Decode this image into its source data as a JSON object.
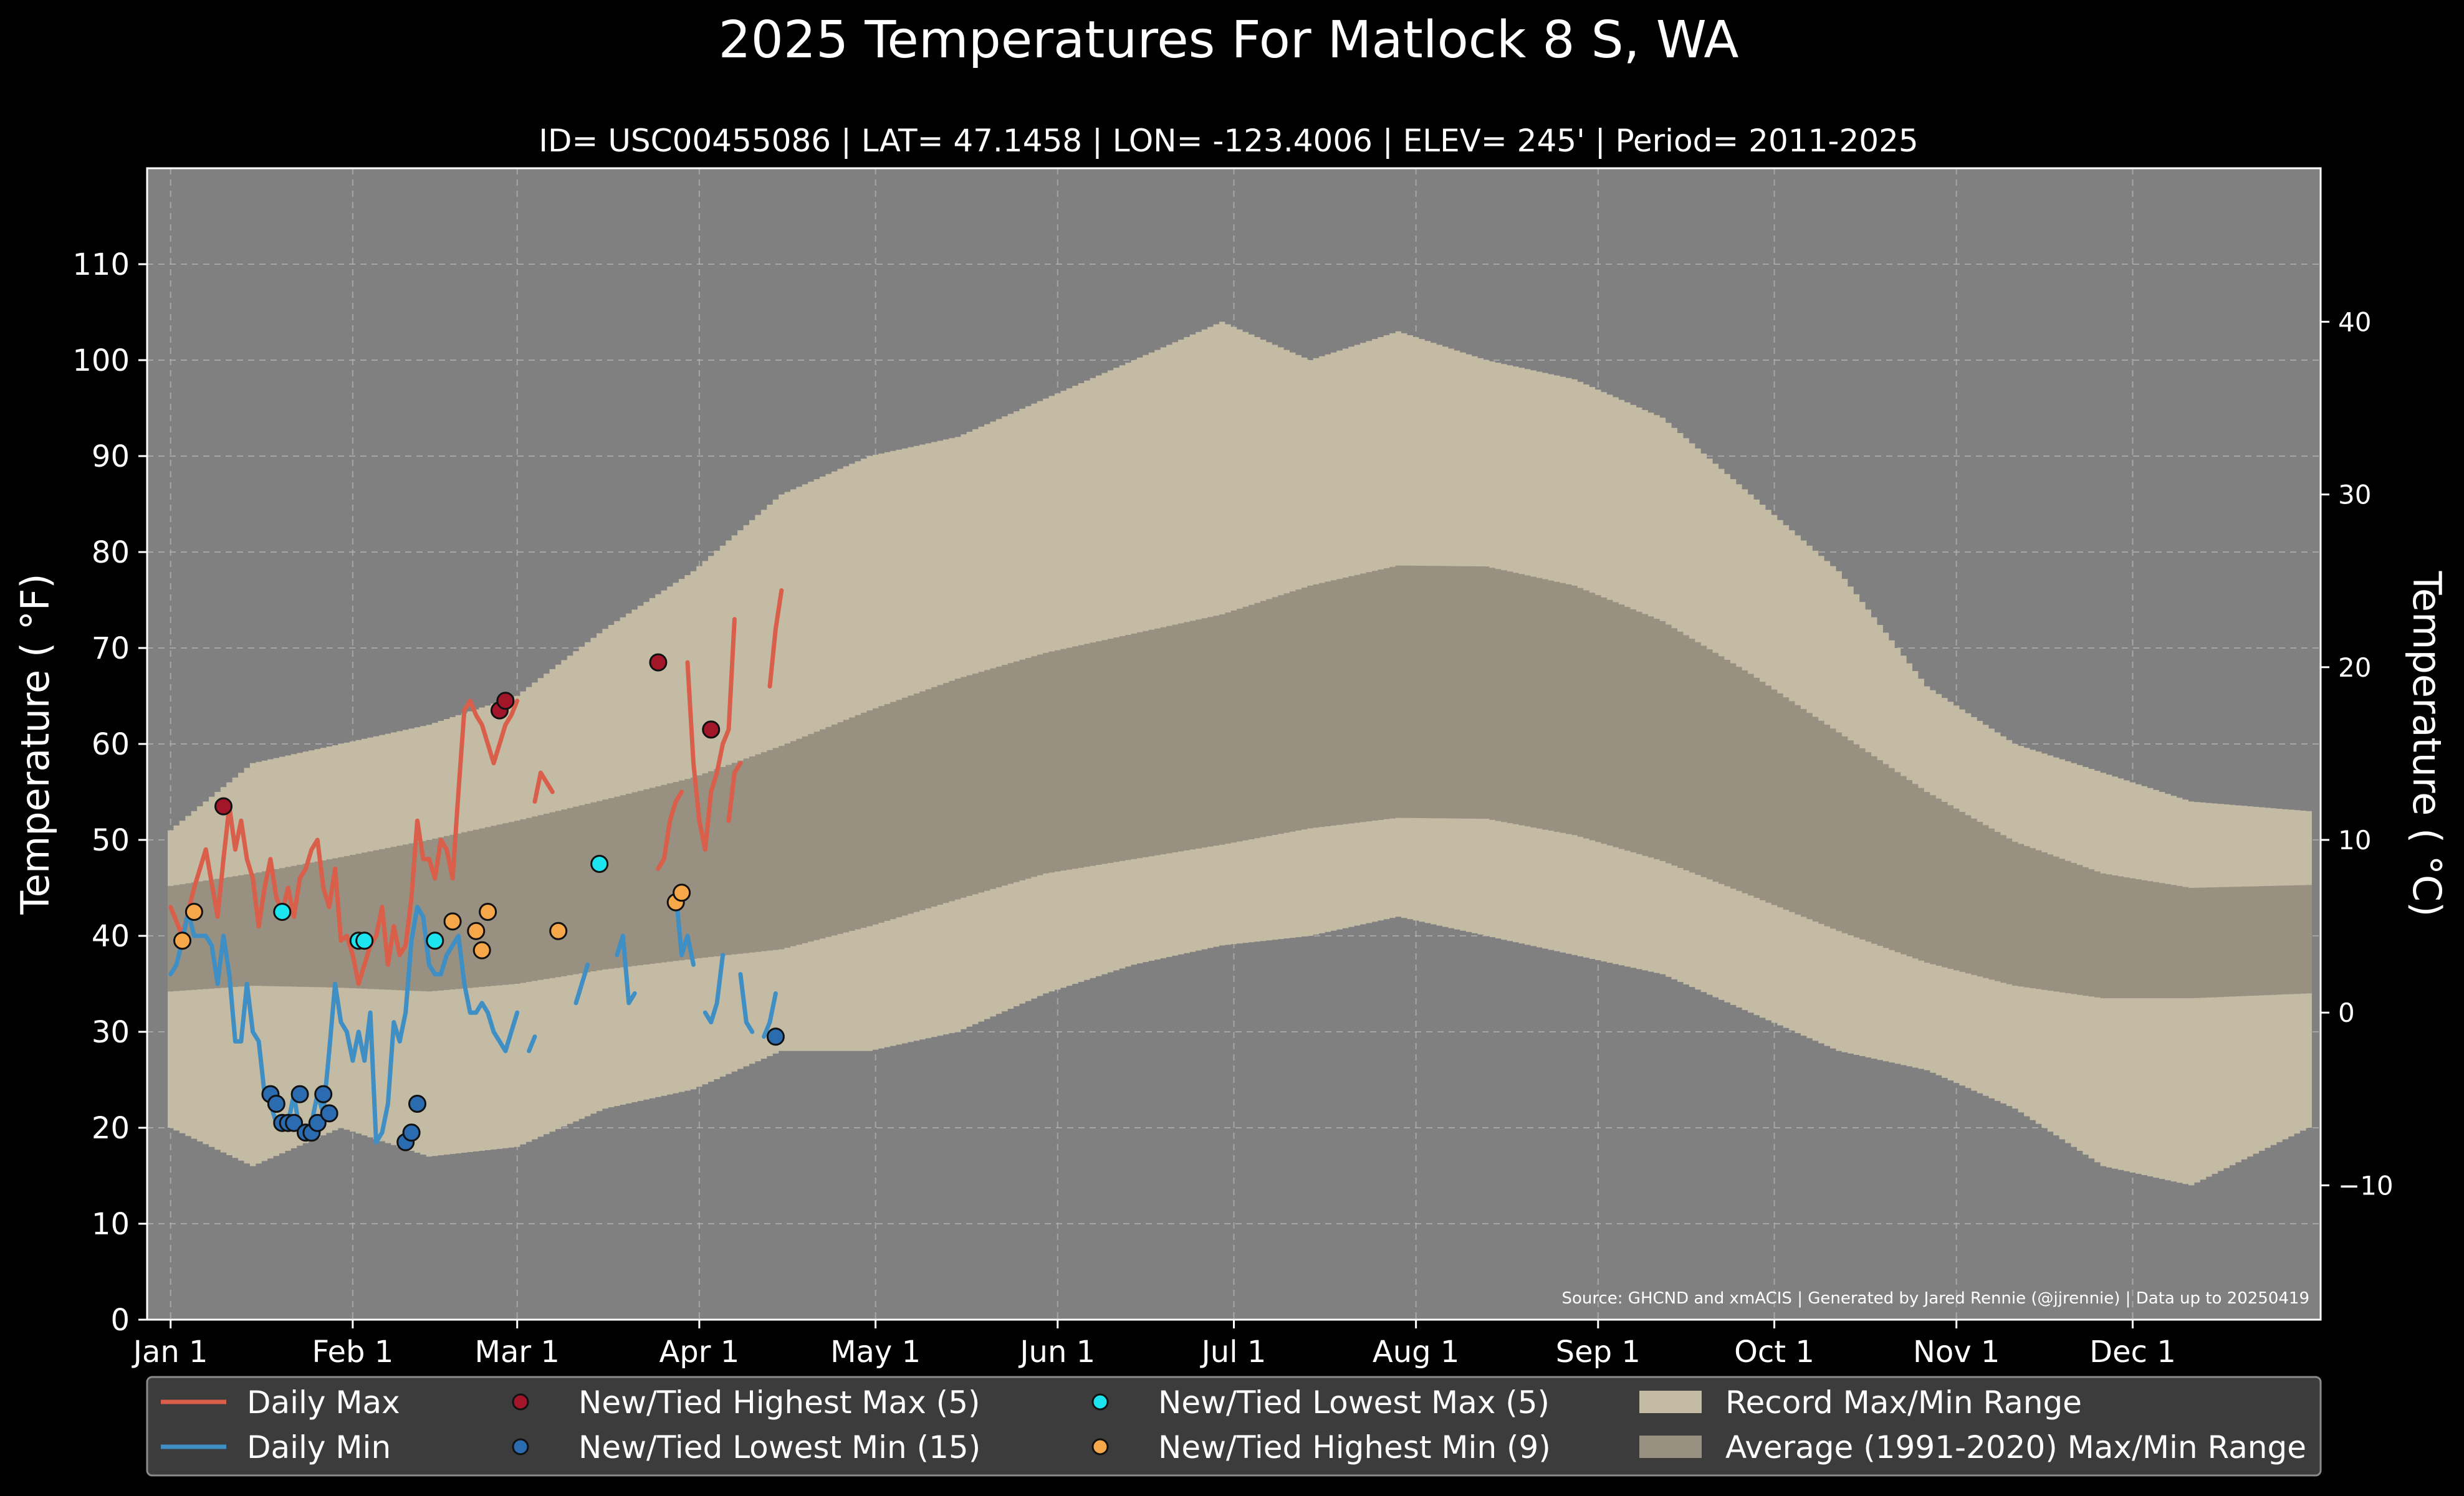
{
  "chart_data": {
    "type": "line",
    "title": "2025 Temperatures For Matlock 8 S, WA",
    "subtitle": "ID= USC00455086 | LAT= 47.1458 | LON= -123.4006 | ELEV= 245' | Period= 2011-2025",
    "ylabel_left": "Temperature ( °F)",
    "ylabel_right": "Temperature ( °C)",
    "ylim": [
      0,
      120
    ],
    "y_ticks_left": [
      0,
      10,
      20,
      30,
      40,
      50,
      60,
      70,
      80,
      90,
      100,
      110
    ],
    "y_ticks_right": [
      40,
      30,
      20,
      10,
      0,
      -10
    ],
    "x_ticks": [
      {
        "label": "Jan 1",
        "day": 1
      },
      {
        "label": "Feb 1",
        "day": 32
      },
      {
        "label": "Mar 1",
        "day": 60
      },
      {
        "label": "Apr 1",
        "day": 91
      },
      {
        "label": "May 1",
        "day": 121
      },
      {
        "label": "Jun 1",
        "day": 152
      },
      {
        "label": "Jul 1",
        "day": 182
      },
      {
        "label": "Aug 1",
        "day": 213
      },
      {
        "label": "Sep 1",
        "day": 244
      },
      {
        "label": "Oct 1",
        "day": 274
      },
      {
        "label": "Nov 1",
        "day": 305
      },
      {
        "label": "Dec 1",
        "day": 335
      }
    ],
    "xlim": [
      -3,
      367
    ],
    "grid": true,
    "source": "Source: GHCND and xmACIS | Generated by Jared Rennie (@jjrennie) | Data up to 20250419",
    "record_range": {
      "day": [
        1,
        15,
        30,
        45,
        60,
        75,
        90,
        105,
        120,
        135,
        150,
        165,
        180,
        195,
        210,
        225,
        240,
        255,
        270,
        285,
        300,
        315,
        330,
        345,
        365
      ],
      "max": [
        51,
        58,
        60,
        62,
        65,
        72,
        78,
        86,
        90,
        92,
        96,
        100,
        104,
        100,
        103,
        100,
        98,
        94,
        86,
        78,
        66,
        60,
        57,
        54,
        53
      ],
      "min": [
        20,
        16,
        20,
        17,
        18,
        22,
        24,
        28,
        28,
        30,
        34,
        37,
        39,
        40,
        42,
        40,
        38,
        36,
        32,
        28,
        26,
        22,
        16,
        14,
        20
      ]
    },
    "normal_range": {
      "day": [
        1,
        15,
        30,
        45,
        60,
        75,
        90,
        105,
        120,
        135,
        150,
        165,
        180,
        195,
        210,
        225,
        240,
        255,
        270,
        285,
        300,
        315,
        330,
        345,
        365
      ],
      "max": [
        45.2,
        46.5,
        48.2,
        50.0,
        52.0,
        54.2,
        56.5,
        59.8,
        63.5,
        66.8,
        69.5,
        71.5,
        73.5,
        76.5,
        78.6,
        78.5,
        76.5,
        72.8,
        67.3,
        61.2,
        55.0,
        49.8,
        46.5,
        45.0,
        45.3
      ],
      "min": [
        34.2,
        34.8,
        34.6,
        34.2,
        35.0,
        36.5,
        37.6,
        38.6,
        41.0,
        43.8,
        46.5,
        48.0,
        49.5,
        51.2,
        52.3,
        52.2,
        50.5,
        47.8,
        44.2,
        40.5,
        37.2,
        34.8,
        33.5,
        33.5,
        34.0
      ]
    },
    "series": [
      {
        "name": "Daily Max",
        "color": "#d95f4b",
        "segments": [
          {
            "day": [
              1,
              3,
              5,
              7,
              9,
              10,
              11,
              12,
              13,
              14,
              15,
              16,
              17,
              18,
              19,
              20,
              21,
              22,
              23,
              24,
              25,
              26,
              27,
              28,
              29,
              30,
              31,
              32,
              33,
              34,
              35,
              36,
              37,
              38,
              39,
              40,
              41,
              42,
              43,
              44,
              45,
              46,
              47,
              48,
              49,
              50,
              51,
              52,
              53,
              54,
              55,
              56,
              57,
              58,
              59,
              60
            ],
            "value": [
              43,
              40,
              45,
              49,
              42,
              48,
              53.5,
              49,
              52,
              48,
              46,
              41,
              45,
              48,
              44,
              42.5,
              45,
              42,
              46,
              47,
              49,
              50,
              45,
              43,
              47,
              39.5,
              40,
              38,
              35,
              37,
              39,
              40,
              43,
              37,
              41,
              38,
              39,
              44,
              52,
              48,
              48,
              46,
              50,
              49,
              46,
              55,
              63.5,
              64.5,
              63,
              62,
              60,
              58,
              60,
              62,
              63,
              64.5
            ]
          },
          {
            "day": [
              63,
              64,
              65,
              66
            ],
            "value": [
              54,
              57,
              56,
              55
            ]
          },
          {
            "day": [
              84,
              85,
              86,
              87,
              88
            ],
            "value": [
              47,
              48,
              52,
              54,
              55
            ]
          },
          {
            "day": [
              89,
              90,
              91,
              92,
              93,
              94,
              95,
              96,
              97
            ],
            "value": [
              68.5,
              58,
              52,
              49,
              55,
              57,
              60,
              61.5,
              73
            ]
          },
          {
            "day": [
              96,
              97,
              98
            ],
            "value": [
              52,
              57,
              58
            ]
          },
          {
            "day": [
              103,
              104,
              105
            ],
            "value": [
              66,
              72,
              76
            ]
          }
        ]
      },
      {
        "name": "Daily Min",
        "color": "#3f8fc5",
        "segments": [
          {
            "day": [
              1,
              2,
              3,
              4,
              5,
              6,
              7,
              8,
              9,
              10,
              11,
              12,
              13,
              14,
              15,
              16,
              17,
              18,
              19,
              20,
              21,
              22,
              23,
              24,
              25,
              26,
              27,
              28,
              29,
              30,
              31,
              32,
              33,
              34,
              35,
              36,
              37,
              38,
              39,
              40,
              41,
              42,
              43,
              44,
              45,
              46,
              47,
              48,
              49,
              50,
              51,
              52,
              53,
              54,
              55,
              56,
              57,
              58,
              59,
              60
            ],
            "value": [
              36,
              37,
              39.5,
              42.5,
              40,
              40,
              40,
              39,
              35,
              40,
              36,
              29,
              29,
              35,
              30,
              29,
              23.5,
              22.5,
              20.5,
              20.5,
              20.5,
              23.5,
              19.5,
              19.5,
              20.5,
              23.5,
              21.5,
              28,
              35,
              31,
              30,
              27,
              30,
              27,
              32,
              18.5,
              19.5,
              22.5,
              31,
              29,
              32,
              39.5,
              43,
              42,
              37,
              36,
              36,
              38,
              39,
              40,
              35,
              32,
              32,
              33,
              32,
              30,
              29,
              28,
              30,
              32
            ]
          },
          {
            "day": [
              62,
              63
            ],
            "value": [
              28,
              29.5
            ]
          },
          {
            "day": [
              70,
              71,
              72
            ],
            "value": [
              33,
              35,
              37
            ]
          },
          {
            "day": [
              77,
              78,
              79,
              80
            ],
            "value": [
              38,
              40,
              33,
              34
            ]
          },
          {
            "day": [
              86,
              87,
              88,
              89,
              90
            ],
            "value": [
              43.5,
              44.5,
              38,
              40,
              37
            ]
          },
          {
            "day": [
              92,
              93,
              94,
              95
            ],
            "value": [
              32,
              31,
              33,
              38
            ]
          },
          {
            "day": [
              98,
              99,
              100
            ],
            "value": [
              36,
              31,
              30
            ]
          },
          {
            "day": [
              102,
              103,
              104
            ],
            "value": [
              29.5,
              31,
              34
            ]
          }
        ]
      }
    ],
    "markers": [
      {
        "name": "New/Tied Highest Max (5)",
        "color": "#a3162a",
        "points": [
          [
            10,
            53.5
          ],
          [
            57,
            63.5
          ],
          [
            58,
            64.5
          ],
          [
            84,
            68.5
          ],
          [
            93,
            61.5
          ]
        ]
      },
      {
        "name": "New/Tied Lowest Min (15)",
        "color": "#2b6cb0",
        "points": [
          [
            18,
            23.5
          ],
          [
            19,
            22.5
          ],
          [
            20,
            20.5
          ],
          [
            21,
            20.5
          ],
          [
            22,
            20.5
          ],
          [
            23,
            23.5
          ],
          [
            24,
            19.5
          ],
          [
            25,
            19.5
          ],
          [
            26,
            20.5
          ],
          [
            27,
            23.5
          ],
          [
            28,
            21.5
          ],
          [
            41,
            18.5
          ],
          [
            42,
            19.5
          ],
          [
            43,
            22.5
          ],
          [
            104,
            29.5
          ]
        ]
      },
      {
        "name": "New/Tied Lowest Max (5)",
        "color": "#1de5f0",
        "points": [
          [
            20,
            42.5
          ],
          [
            33,
            39.5
          ],
          [
            34,
            39.5
          ],
          [
            46,
            39.5
          ],
          [
            74,
            47.5
          ]
        ]
      },
      {
        "name": "New/Tied Highest Min (9)",
        "color": "#f5a74a",
        "points": [
          [
            3,
            39.5
          ],
          [
            5,
            42.5
          ],
          [
            49,
            41.5
          ],
          [
            53,
            40.5
          ],
          [
            54,
            38.5
          ],
          [
            55,
            42.5
          ],
          [
            67,
            40.5
          ],
          [
            87,
            43.5
          ],
          [
            88,
            44.5
          ]
        ]
      }
    ],
    "legend": {
      "placement": "bottom",
      "entries": [
        {
          "label": "Daily Max",
          "kind": "line",
          "color": "#d95f4b"
        },
        {
          "label": "Daily Min",
          "kind": "line",
          "color": "#3f8fc5"
        },
        {
          "label": "New/Tied Highest Max (5)",
          "kind": "dot",
          "color": "#a3162a"
        },
        {
          "label": "New/Tied Lowest Min (15)",
          "kind": "dot",
          "color": "#2b6cb0"
        },
        {
          "label": "New/Tied Lowest Max (5)",
          "kind": "dot",
          "color": "#1de5f0"
        },
        {
          "label": "New/Tied Highest Min (9)",
          "kind": "dot",
          "color": "#f5a74a"
        },
        {
          "label": "Record Max/Min Range",
          "kind": "patch",
          "color": "#c4bba5"
        },
        {
          "label": "Average (1991-2020) Max/Min Range",
          "kind": "patch",
          "color": "#989080"
        }
      ]
    },
    "colors": {
      "figure_background": "#000000",
      "plot_background": "#808080",
      "record_band": "#c4bba5",
      "normal_band": "#989080",
      "grid": "#b5b5b5"
    }
  }
}
